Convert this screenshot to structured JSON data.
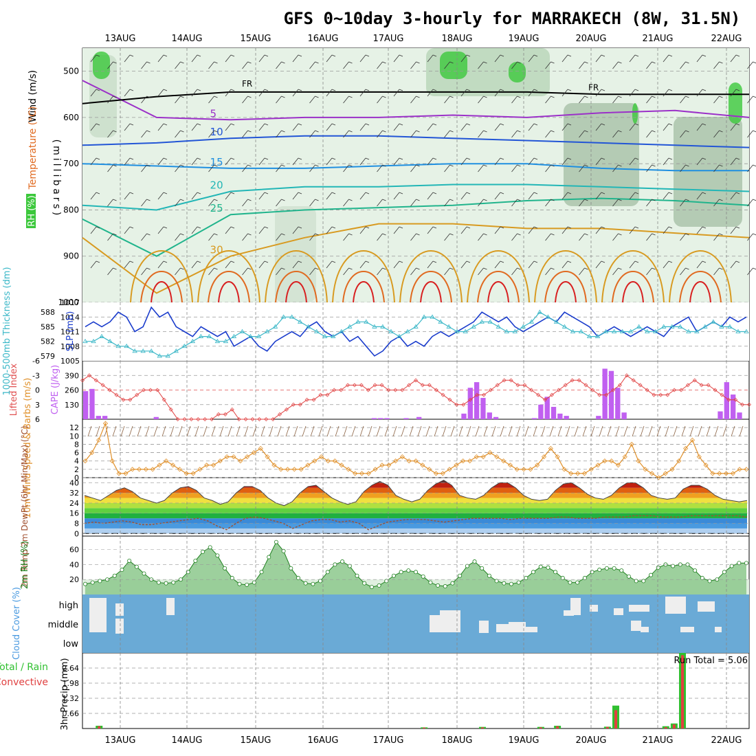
{
  "title": "GFS 0~10day 3-hourly for MARRAKECH (8W, 31.5N)",
  "dates": [
    "13AUG",
    "14AUG",
    "15AUG",
    "16AUG",
    "17AUG",
    "18AUG",
    "19AUG",
    "20AUG",
    "21AUG",
    "22AUG"
  ],
  "chart_data": [
    {
      "type": "heatmap",
      "panel": "upper-air",
      "ylabel_wind": "Wind (m/s)",
      "ylabel_temp": "Temperature (°C)",
      "ylabel_rh": "RH (%)",
      "ylabel_pressure": "(millibars)",
      "y_ticks": [
        "500",
        "600",
        "700",
        "800",
        "900",
        "1000"
      ],
      "ylim": [
        1000,
        450
      ],
      "y_reversed": true,
      "freezing_label": "FR",
      "isotherms": [
        {
          "temp": 5,
          "label": "5",
          "color": "#9b30c8",
          "levels": [
            520,
            600,
            605,
            600,
            600,
            595,
            600,
            590,
            585,
            600
          ]
        },
        {
          "temp": 10,
          "label": "10",
          "color": "#2255d6",
          "levels": [
            660,
            655,
            645,
            640,
            640,
            645,
            650,
            655,
            660,
            665
          ]
        },
        {
          "temp": 15,
          "label": "15",
          "color": "#1f8fe0",
          "levels": [
            700,
            705,
            710,
            710,
            705,
            700,
            700,
            710,
            715,
            715
          ]
        },
        {
          "temp": 20,
          "label": "20",
          "color": "#22b6b6",
          "levels": [
            790,
            800,
            760,
            750,
            750,
            745,
            745,
            750,
            755,
            760
          ]
        },
        {
          "temp": 25,
          "label": "25",
          "color": "#20b48c",
          "levels": [
            820,
            900,
            810,
            800,
            795,
            790,
            780,
            775,
            780,
            790
          ]
        },
        {
          "temp": 30,
          "label": "30",
          "color": "#d89a20",
          "levels": [
            860,
            980,
            900,
            860,
            830,
            830,
            840,
            840,
            850,
            860
          ]
        }
      ],
      "freezing_level": [
        570,
        555,
        545,
        545,
        545,
        545,
        545,
        550,
        550,
        550
      ],
      "rh_legend_colors": [
        "#e8f4e8",
        "#c8e0c8",
        "#a0c8a0",
        "#3cc83c"
      ]
    },
    {
      "type": "line",
      "panel": "slp-thickness",
      "ylabel_left": "1000-500mb Thickness (dm)",
      "ylabel_right": "SLP (mb)",
      "y_ticks_left": [
        "579",
        "582",
        "585",
        "588"
      ],
      "y_ticks_right": [
        "1005",
        "1008",
        "1011",
        "1014",
        "1017"
      ],
      "series": [
        {
          "name": "SLP (mb)",
          "color": "#1a3ccc",
          "values": [
            1012,
            1013,
            1012,
            1013,
            1015,
            1014,
            1011,
            1012,
            1016,
            1014,
            1015,
            1012,
            1011,
            1010,
            1012,
            1011,
            1010,
            1011,
            1008,
            1009,
            1010,
            1008,
            1007,
            1009,
            1010,
            1011,
            1010,
            1012,
            1013,
            1011,
            1010,
            1011,
            1009,
            1010,
            1008,
            1006,
            1007,
            1009,
            1010,
            1008,
            1009,
            1008,
            1010,
            1011,
            1010,
            1011,
            1012,
            1013,
            1015,
            1014,
            1013,
            1014,
            1012,
            1011,
            1012,
            1013,
            1014,
            1013,
            1015,
            1014,
            1013,
            1012,
            1010,
            1011,
            1012,
            1011,
            1010,
            1011,
            1012,
            1011,
            1010,
            1012,
            1013,
            1014,
            1011,
            1012,
            1013,
            1012,
            1014,
            1013,
            1014
          ]
        },
        {
          "name": "Thickness (dm)",
          "color": "#3cb8c8",
          "values": [
            582,
            582,
            583,
            582,
            581,
            581,
            580,
            580,
            580,
            579,
            579,
            580,
            581,
            582,
            583,
            583,
            582,
            582,
            583,
            584,
            583,
            583,
            584,
            585,
            587,
            587,
            586,
            585,
            584,
            583,
            583,
            584,
            585,
            586,
            586,
            585,
            585,
            584,
            583,
            584,
            585,
            587,
            587,
            586,
            585,
            584,
            584,
            585,
            586,
            586,
            585,
            584,
            584,
            585,
            586,
            588,
            587,
            586,
            585,
            584,
            584,
            583,
            583,
            584,
            584,
            584,
            584,
            585,
            584,
            584,
            585,
            585,
            585,
            584,
            584,
            585,
            586,
            585,
            585,
            584,
            584
          ]
        }
      ]
    },
    {
      "type": "bar",
      "panel": "cape-li",
      "ylabel_left": "Lifted Index",
      "ylabel_right": "CAPE (J/kg)",
      "y_ticks_left": [
        "-6",
        "-3",
        "0",
        "3",
        "6"
      ],
      "y_ticks_right": [
        "130",
        "260",
        "390"
      ],
      "cape": [
        250,
        270,
        30,
        30,
        0,
        0,
        0,
        0,
        0,
        0,
        0,
        20,
        0,
        0,
        0,
        0,
        0,
        0,
        0,
        0,
        0,
        0,
        0,
        0,
        0,
        0,
        0,
        0,
        0,
        0,
        0,
        0,
        0,
        0,
        0,
        0,
        0,
        0,
        0,
        0,
        0,
        0,
        0,
        0,
        0,
        10,
        10,
        10,
        0,
        0,
        10,
        0,
        20,
        0,
        0,
        0,
        0,
        0,
        0,
        50,
        280,
        330,
        190,
        60,
        20,
        0,
        0,
        0,
        0,
        0,
        10,
        130,
        200,
        110,
        50,
        30,
        0,
        0,
        0,
        0,
        30,
        450,
        430,
        280,
        60,
        0,
        0,
        0,
        0,
        0,
        0,
        0,
        0,
        0,
        0,
        0,
        0,
        0,
        0,
        70,
        330,
        220,
        60,
        0
      ],
      "lifted_index": [
        -2,
        -3,
        -2,
        -1,
        0,
        1,
        2,
        2,
        1,
        0,
        0,
        0,
        2,
        4,
        6,
        6,
        6,
        6,
        6,
        6,
        5,
        5,
        4,
        6,
        6,
        6,
        6,
        6,
        6,
        5,
        4,
        3,
        3,
        2,
        2,
        1,
        1,
        0,
        0,
        -1,
        -1,
        -1,
        0,
        -1,
        -1,
        0,
        0,
        0,
        -1,
        -2,
        -1,
        -1,
        0,
        1,
        2,
        3,
        3,
        2,
        1,
        1,
        0,
        -1,
        -2,
        -2,
        -1,
        -1,
        0,
        1,
        2,
        1,
        0,
        -1,
        -2,
        -2,
        -1,
        0,
        1,
        1,
        0,
        -1,
        -3,
        -2,
        -1,
        0,
        1,
        1,
        1,
        0,
        0,
        -1,
        -2,
        -1,
        -1,
        0,
        1,
        2,
        2,
        3,
        3
      ]
    },
    {
      "type": "line",
      "panel": "wind10m",
      "ylabel": "10m Wind Speed & Barbs (m/s)",
      "y_ticks": [
        "0",
        "2",
        "4",
        "6",
        "8",
        "10",
        "12"
      ],
      "series": [
        {
          "name": "10m Wind Speed",
          "color": "#e0902a",
          "values": [
            4,
            6,
            9,
            13,
            4,
            1,
            1,
            2,
            2,
            2,
            2,
            3,
            4,
            3,
            2,
            1,
            1,
            2,
            3,
            3,
            4,
            5,
            5,
            4,
            5,
            6,
            7,
            5,
            3,
            2,
            2,
            2,
            2,
            3,
            4,
            5,
            4,
            4,
            3,
            2,
            1,
            1,
            1,
            2,
            3,
            3,
            4,
            5,
            4,
            4,
            3,
            2,
            1,
            1,
            2,
            3,
            4,
            4,
            5,
            5,
            6,
            5,
            4,
            3,
            2,
            2,
            2,
            3,
            5,
            7,
            5,
            2,
            1,
            1,
            1,
            2,
            3,
            4,
            4,
            3,
            5,
            8,
            4,
            2,
            1,
            0,
            1,
            2,
            4,
            7,
            9,
            5,
            3,
            1,
            1,
            1,
            1,
            2,
            2
          ]
        }
      ]
    },
    {
      "type": "area",
      "panel": "temp2m",
      "ylabel": "2m Temp 2m DewPt (6hr Min/Max) (°C)",
      "y_ticks": [
        "0",
        "8",
        "16",
        "24",
        "32",
        "40"
      ],
      "temperature": [
        30,
        28,
        26,
        30,
        34,
        36,
        33,
        28,
        26,
        24,
        26,
        32,
        36,
        37,
        34,
        28,
        26,
        23,
        25,
        32,
        37,
        37,
        34,
        28,
        24,
        22,
        25,
        32,
        37,
        38,
        33,
        28,
        25,
        23,
        25,
        33,
        38,
        41,
        38,
        30,
        27,
        25,
        27,
        34,
        39,
        42,
        38,
        30,
        28,
        27,
        30,
        36,
        40,
        40,
        36,
        30,
        27,
        26,
        27,
        34,
        39,
        40,
        36,
        31,
        28,
        27,
        30,
        36,
        40,
        40,
        36,
        30,
        28,
        27,
        28,
        35,
        38,
        38,
        35,
        30,
        27,
        26,
        25,
        26
      ],
      "dewpoint": [
        8,
        9,
        8,
        9,
        10,
        9,
        7,
        7,
        8,
        9,
        10,
        11,
        12,
        10,
        6,
        3,
        8,
        12,
        13,
        12,
        10,
        8,
        4,
        7,
        10,
        11,
        11,
        9,
        10,
        8,
        3,
        6,
        9,
        10,
        11,
        11,
        11,
        10,
        9,
        10,
        11,
        12,
        12,
        12,
        12,
        11,
        12,
        12,
        12,
        12,
        13,
        13,
        12,
        12,
        12,
        13,
        13,
        13,
        14,
        14,
        14,
        13,
        13,
        13,
        14,
        14,
        14,
        14,
        14,
        14,
        13
      ]
    },
    {
      "type": "area",
      "panel": "rh2m",
      "ylabel": "2m RH (%)",
      "y_ticks": [
        "20",
        "40",
        "60"
      ],
      "values": [
        14,
        16,
        18,
        20,
        25,
        33,
        45,
        37,
        28,
        20,
        16,
        15,
        16,
        20,
        30,
        45,
        57,
        63,
        52,
        35,
        22,
        14,
        13,
        16,
        30,
        50,
        70,
        58,
        35,
        22,
        15,
        14,
        18,
        30,
        40,
        44,
        38,
        25,
        15,
        10,
        12,
        18,
        25,
        30,
        32,
        30,
        24,
        16,
        12,
        11,
        15,
        25,
        38,
        44,
        35,
        25,
        18,
        15,
        14,
        16,
        22,
        30,
        37,
        36,
        30,
        22,
        16,
        16,
        22,
        30,
        33,
        35,
        35,
        32,
        24,
        18,
        18,
        26,
        36,
        40,
        38,
        40,
        40,
        32,
        22,
        18,
        20,
        30,
        38,
        42,
        42
      ]
    },
    {
      "type": "heatmap",
      "panel": "cloud",
      "ylabel": "Cloud Cover (%)",
      "rows": [
        "high",
        "middle",
        "low"
      ],
      "bg_color": "#6aaad6",
      "fill_color": "#eeeeee"
    },
    {
      "type": "bar",
      "panel": "precip",
      "ylabel": "3hr Precip (mm)",
      "ylabel_left": "Total / Rain",
      "ylabel_left2": "Convective",
      "y_ticks": [
        "0.66",
        "1.32",
        "1.98",
        "2.64"
      ],
      "run_total_label": "Run Total =",
      "run_total": "5.06",
      "bars": [
        {
          "t": 2,
          "total": 0.12,
          "conv": 0.1
        },
        {
          "t": 41,
          "total": 0.05,
          "conv": 0.04
        },
        {
          "t": 48,
          "total": 0.07,
          "conv": 0.05
        },
        {
          "t": 55,
          "total": 0.07,
          "conv": 0.05
        },
        {
          "t": 57,
          "total": 0.12,
          "conv": 0.1
        },
        {
          "t": 63,
          "total": 0.08,
          "conv": 0.07
        },
        {
          "t": 64,
          "total": 1.0,
          "conv": 0.8
        },
        {
          "t": 70,
          "total": 0.1,
          "conv": 0.06
        },
        {
          "t": 71,
          "total": 0.22,
          "conv": 0.18
        },
        {
          "t": 72,
          "total": 3.3,
          "conv": 3.2
        }
      ]
    }
  ]
}
